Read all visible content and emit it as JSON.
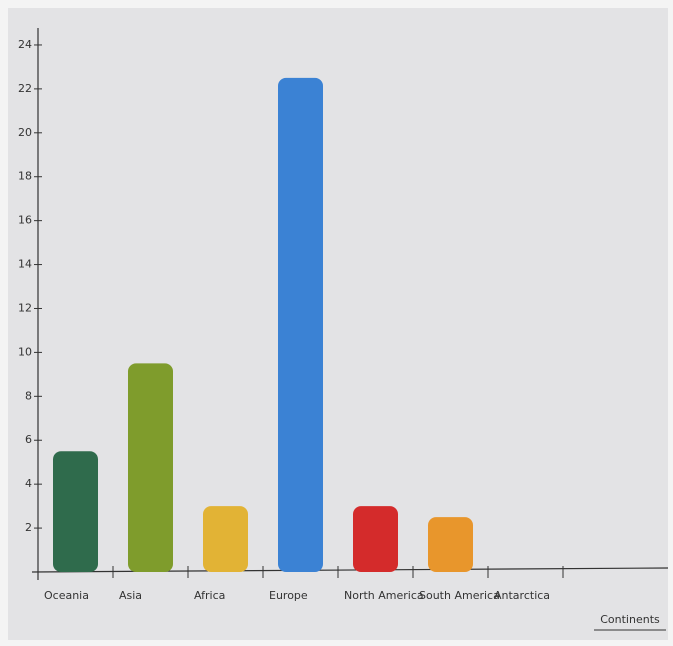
{
  "chart_data": {
    "type": "bar",
    "x_label": "Continents",
    "categories": [
      "Oceania",
      "Asia",
      "Africa",
      "Europe",
      "North America",
      "South America",
      "Antarctica"
    ],
    "values": [
      5.5,
      9.5,
      3,
      22.5,
      3,
      2.5,
      0
    ],
    "colors": [
      "#2f6b4c",
      "#7f9c2c",
      "#e2b335",
      "#3b82d4",
      "#d42b2b",
      "#e8962c",
      "#999999"
    ],
    "ylim": [
      0,
      25
    ],
    "yticks": [
      2,
      4,
      6,
      8,
      10,
      12,
      14,
      16,
      18,
      20,
      22,
      24
    ],
    "grid": false
  }
}
